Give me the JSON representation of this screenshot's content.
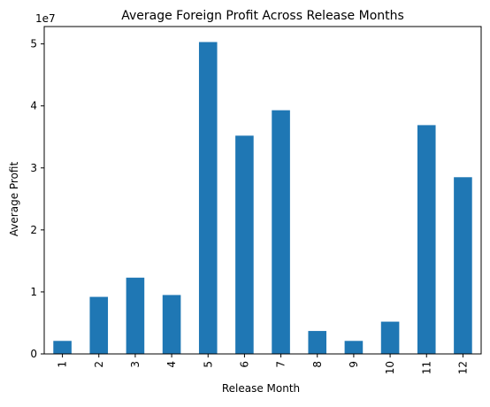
{
  "chart_data": {
    "type": "bar",
    "title": "Average Foreign Profit Across Release Months",
    "xlabel": "Release Month",
    "ylabel": "Average Profit",
    "scale_label": "1e7",
    "categories": [
      "1",
      "2",
      "3",
      "4",
      "5",
      "6",
      "7",
      "8",
      "9",
      "10",
      "11",
      "12"
    ],
    "values": [
      2100000,
      9200000,
      12300000,
      9500000,
      50300000,
      35200000,
      39300000,
      3700000,
      2100000,
      5200000,
      36900000,
      28500000
    ],
    "ylim": [
      0,
      52800000
    ],
    "yticks": [
      0,
      10000000,
      20000000,
      30000000,
      40000000,
      50000000
    ],
    "ytick_labels": [
      "0",
      "1",
      "2",
      "3",
      "4",
      "5"
    ],
    "grid": false,
    "bar_color": "#1f77b4"
  }
}
